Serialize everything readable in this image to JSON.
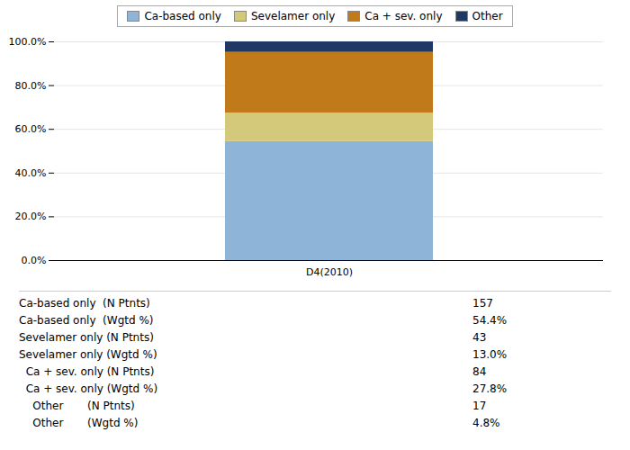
{
  "chart_data": {
    "type": "bar",
    "stacked": true,
    "categories": [
      "D4(2010)"
    ],
    "series": [
      {
        "name": "Ca-based only",
        "color": "#8EB4D8",
        "values": [
          54.4
        ]
      },
      {
        "name": "Sevelamer only",
        "color": "#D4C97A",
        "values": [
          13.0
        ]
      },
      {
        "name": "Ca + sev. only",
        "color": "#C07A1A",
        "values": [
          27.8
        ]
      },
      {
        "name": "Other",
        "color": "#1F3864",
        "values": [
          4.8
        ]
      }
    ],
    "ylim": [
      0,
      100
    ],
    "yticks": [
      {
        "value": 0,
        "label": "0.0%"
      },
      {
        "value": 20,
        "label": "20.0%"
      },
      {
        "value": 40,
        "label": "40.0%"
      },
      {
        "value": 60,
        "label": "60.0%"
      },
      {
        "value": 80,
        "label": "80.0%"
      },
      {
        "value": 100,
        "label": "100.0%"
      }
    ],
    "grid": true,
    "legend": "top",
    "table_rows": [
      {
        "label": "Ca-based only  (N Ptnts)",
        "value": "157"
      },
      {
        "label": "Ca-based only  (Wgtd %)",
        "value": "54.4%"
      },
      {
        "label": "Sevelamer only (N Ptnts)",
        "value": "43"
      },
      {
        "label": "Sevelamer only (Wgtd %)",
        "value": "13.0%"
      },
      {
        "label": "  Ca + sev. only (N Ptnts)",
        "value": "84"
      },
      {
        "label": "  Ca + sev. only (Wgtd %)",
        "value": "27.8%"
      },
      {
        "label": "    Other       (N Ptnts)",
        "value": "17"
      },
      {
        "label": "    Other       (Wgtd %)",
        "value": "4.8%"
      }
    ]
  }
}
